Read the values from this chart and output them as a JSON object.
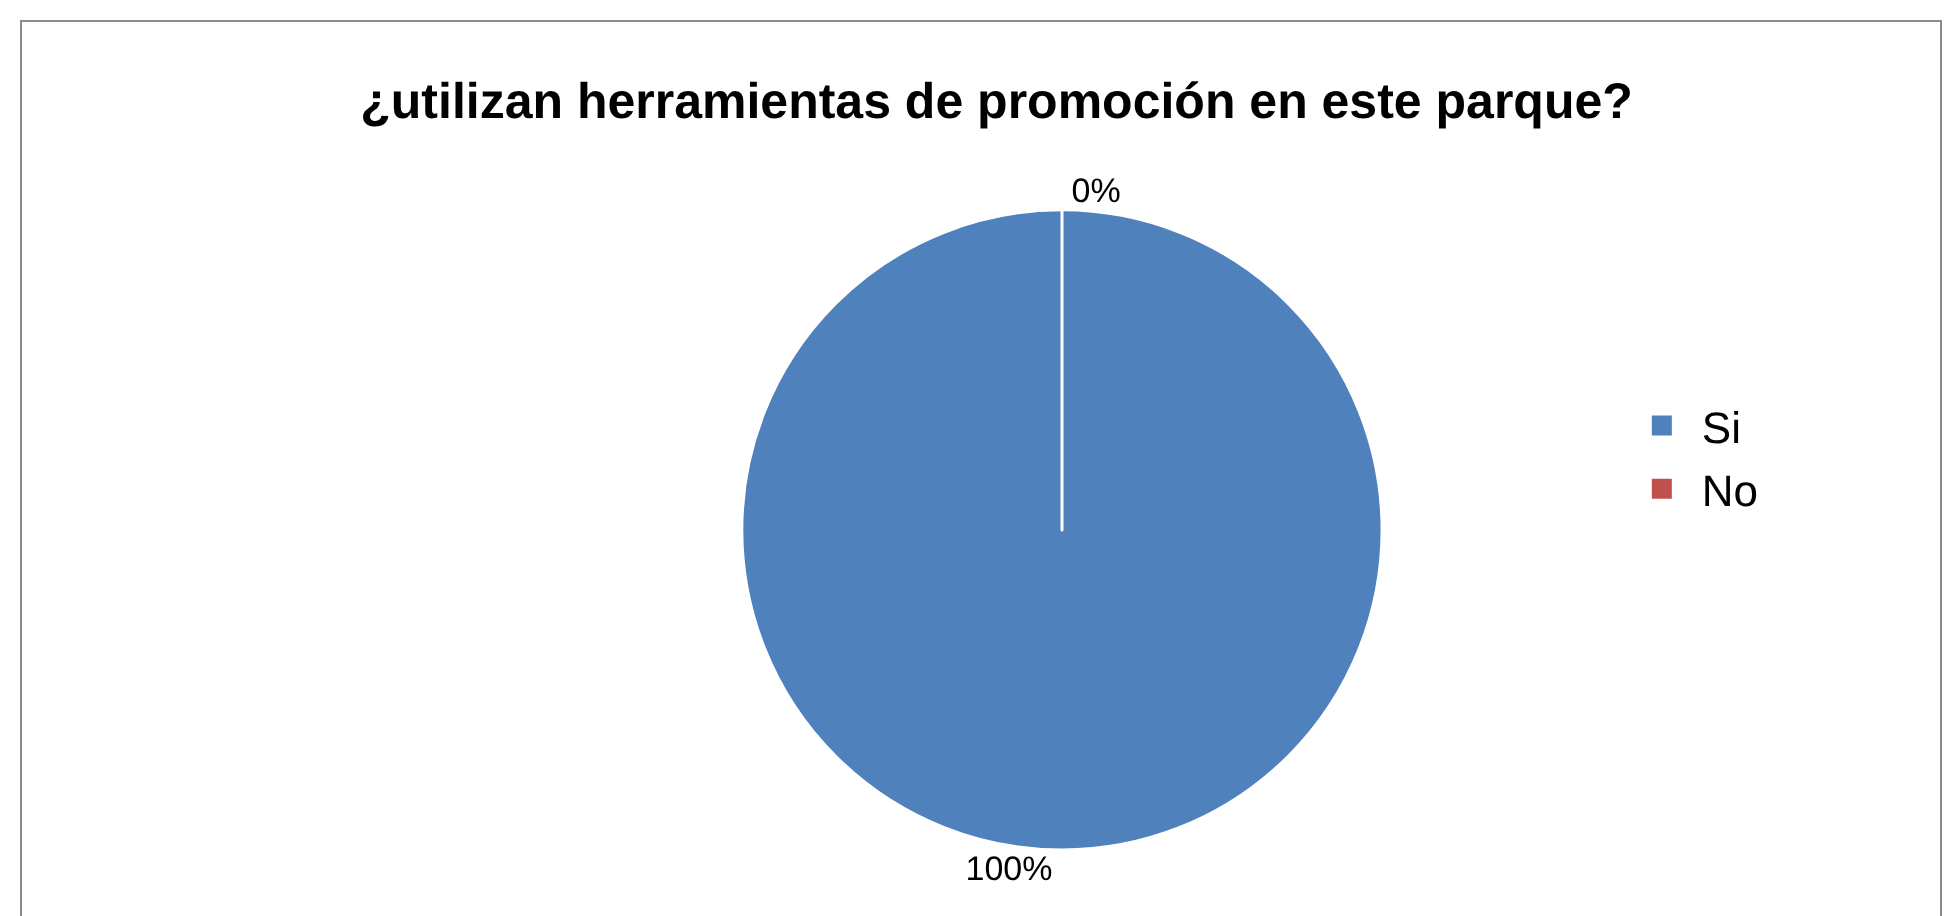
{
  "chart_data": {
    "type": "pie",
    "title": "¿utilizan herramientas de promoción en este parque?",
    "categories": [
      "Si",
      "No"
    ],
    "values": [
      100,
      0
    ],
    "colors": [
      "#4f81bd",
      "#c0504d"
    ],
    "value_labels": [
      "100%",
      "0%"
    ],
    "legend": "right"
  }
}
